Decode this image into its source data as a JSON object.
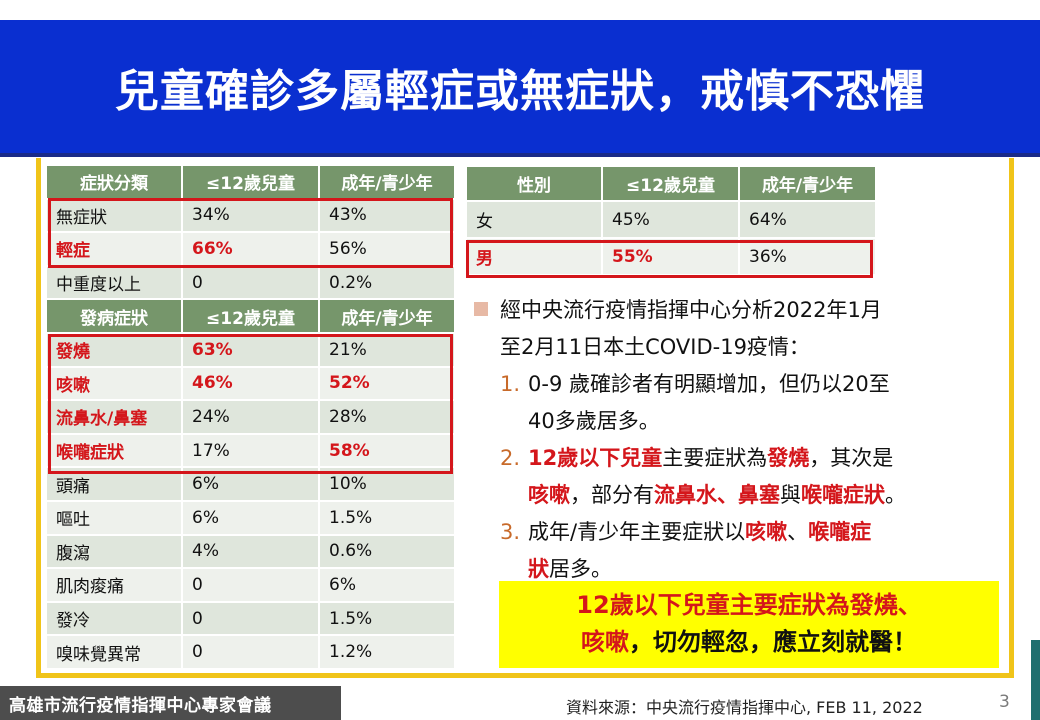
{
  "title": "兒童確診多屬輕症或無症狀，戒慎不恐懼",
  "symptom_table": {
    "headers": [
      "症狀分類",
      "≤12歲兒童",
      "成年/青少年"
    ],
    "rows": [
      [
        "無症狀",
        "34%",
        "43%"
      ],
      [
        "輕症",
        "66%",
        "56%"
      ],
      [
        "中重度以上",
        "0",
        "0.2%"
      ]
    ],
    "headers2": [
      "發病症狀",
      "≤12歲兒童",
      "成年/青少年"
    ],
    "rows2": [
      [
        "發燒",
        "63%",
        "21%"
      ],
      [
        "咳嗽",
        "46%",
        "52%"
      ],
      [
        "流鼻水/鼻塞",
        "24%",
        "28%"
      ],
      [
        "喉嚨症狀",
        "17%",
        "58%"
      ],
      [
        "頭痛",
        "6%",
        "10%"
      ],
      [
        "嘔吐",
        "6%",
        "1.5%"
      ],
      [
        "腹瀉",
        "4%",
        "0.6%"
      ],
      [
        "肌肉痠痛",
        "0",
        "6%"
      ],
      [
        "發冷",
        "0",
        "1.5%"
      ],
      [
        "嗅味覺異常",
        "0",
        "1.2%"
      ]
    ]
  },
  "sex_table": {
    "headers": [
      "性別",
      "≤12歲兒童",
      "成年/青少年"
    ],
    "rows": [
      [
        "女",
        "45%",
        "64%"
      ],
      [
        "男",
        "55%",
        "36%"
      ]
    ]
  },
  "notes": {
    "intro_line1": "經中央流行疫情指揮中心分析2022年1月",
    "intro_line2": "至2月11日本土COVID-19疫情：",
    "item1_num": "1.",
    "item1_line1": "0-9 歲確診者有明顯增加，但仍以20至",
    "item1_line2": "40多歲居多。",
    "item2_num": "2.",
    "item2_a": "12歲以下兒童",
    "item2_b": "主要症狀為",
    "item2_c": "發燒",
    "item2_d": "，其次是",
    "item2_e": "咳嗽",
    "item2_f": "，部分有",
    "item2_g": "流鼻水、鼻塞",
    "item2_h": "與",
    "item2_i": "喉嚨症狀",
    "item2_j": "。",
    "item3_num": "3.",
    "item3_a": "成年/青少年主要症狀以",
    "item3_b": "咳嗽",
    "item3_c": "、",
    "item3_d": "喉嚨症",
    "item3_e": "狀",
    "item3_f": "居多。"
  },
  "callout": {
    "line1": "12歲以下兒童主要症狀為發燒、",
    "line2_red": "咳嗽",
    "line2_black": "，切勿輕忽，應立刻就醫！"
  },
  "footer": {
    "left": "高雄市流行疫情指揮中心專家會議",
    "source": "資料來源：中央流行疫情指揮中心, FEB 11, 2022",
    "page": "3"
  },
  "colors": {
    "title_bg": "#0a2fd0",
    "frame": "#f0c419",
    "header_green": "#76966b",
    "highlight_red": "#d4161b",
    "callout_yellow": "#ffff00"
  }
}
